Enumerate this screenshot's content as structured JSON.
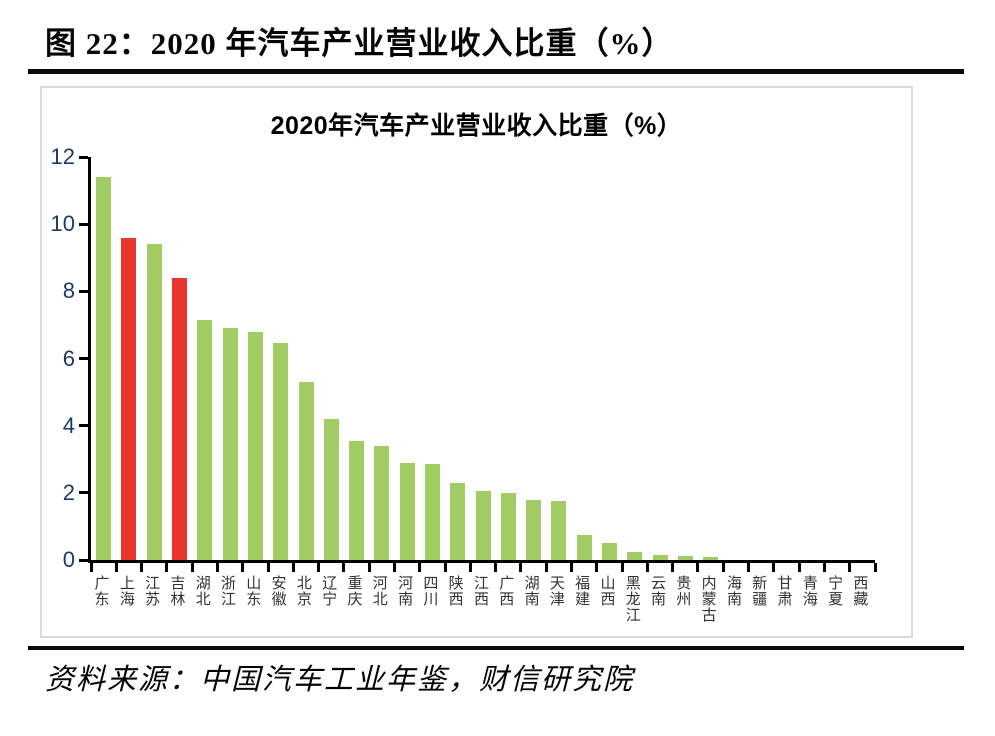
{
  "header": {
    "caption": "图 22：2020 年汽车产业营业收入比重（%）"
  },
  "source": {
    "text": "资料来源：中国汽车工业年鉴，财信研究院"
  },
  "chart_data": {
    "type": "bar",
    "title": "2020年汽车产业营业收入比重（%）",
    "categories": [
      "广东",
      "上海",
      "江苏",
      "吉林",
      "湖北",
      "浙江",
      "山东",
      "安徽",
      "北京",
      "辽宁",
      "重庆",
      "河北",
      "河南",
      "四川",
      "陕西",
      "江西",
      "广西",
      "湖南",
      "天津",
      "福建",
      "山西",
      "黑龙江",
      "云南",
      "贵州",
      "内蒙古",
      "海南",
      "新疆",
      "甘肃",
      "青海",
      "宁夏",
      "西藏"
    ],
    "values": [
      11.4,
      9.6,
      9.4,
      8.4,
      7.15,
      6.9,
      6.8,
      6.45,
      5.3,
      4.2,
      3.55,
      3.4,
      2.9,
      2.85,
      2.3,
      2.05,
      2.0,
      1.8,
      1.75,
      0.75,
      0.5,
      0.25,
      0.15,
      0.13,
      0.1,
      0,
      0,
      0,
      0,
      0,
      0
    ],
    "highlight_indices": [
      1,
      3
    ],
    "bar_color": "#a0cc63",
    "highlight_color": "#e8372b",
    "xlabel": "",
    "ylabel": "",
    "ylim": [
      0,
      12
    ],
    "yticks": [
      0,
      2,
      4,
      6,
      8,
      10,
      12
    ],
    "grid": false,
    "legend": "none",
    "axis_label_color": "#1f3864"
  }
}
